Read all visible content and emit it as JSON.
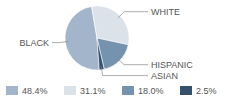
{
  "chart_data": {
    "type": "pie",
    "categories": [
      "BLACK",
      "WHITE",
      "HISPANIC",
      "ASIAN"
    ],
    "values": [
      48.4,
      31.1,
      18.0,
      2.5
    ],
    "value_labels": [
      "48.4%",
      "31.1%",
      "18.0%",
      "2.5%"
    ],
    "colors": [
      "#a3b5ca",
      "#dbe2ea",
      "#7592ae",
      "#34516d"
    ],
    "legend": "bottom"
  }
}
